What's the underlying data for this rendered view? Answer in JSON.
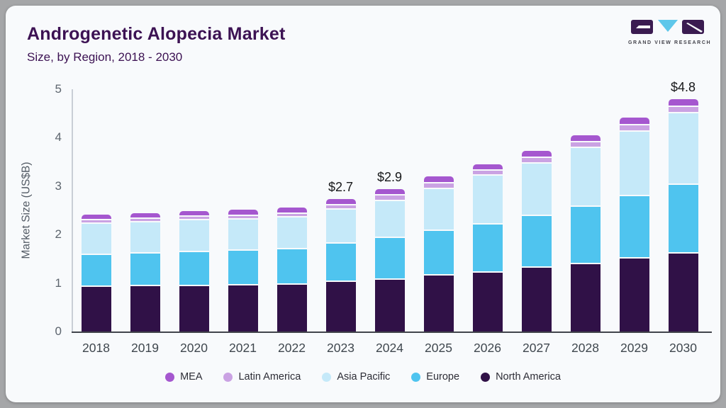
{
  "header": {
    "title": "Androgenetic Alopecia Market",
    "subtitle": "Size, by Region, 2018 - 2030"
  },
  "logo": {
    "name": "grand-view-research-logo",
    "text": "GRAND VIEW RESEARCH",
    "dark_color": "#3a1b50",
    "cyan_color": "#5ec7ea"
  },
  "colors": {
    "page_bg": "#a5a6a8",
    "card_bg": "#f8fafc",
    "title": "#3c1253",
    "x_axis_line": "#41444b",
    "y_axis_line": "#c9ced6"
  },
  "chart_data": {
    "type": "bar",
    "stacked": true,
    "title": "Androgenetic Alopecia Market",
    "subtitle": "Size, by Region, 2018 - 2030",
    "xlabel": "",
    "ylabel": "Market Size (US$B)",
    "ylim": [
      0,
      5
    ],
    "y_ticks": [
      0,
      1,
      2,
      3,
      4,
      5
    ],
    "grid": false,
    "legend_position": "bottom",
    "categories": [
      "2018",
      "2019",
      "2020",
      "2021",
      "2022",
      "2023",
      "2024",
      "2025",
      "2026",
      "2027",
      "2028",
      "2029",
      "2030"
    ],
    "series": [
      {
        "name": "North America",
        "color": "#301147",
        "values": [
          0.92,
          0.93,
          0.94,
          0.95,
          0.97,
          1.02,
          1.07,
          1.15,
          1.22,
          1.31,
          1.39,
          1.5,
          1.61
        ]
      },
      {
        "name": "Europe",
        "color": "#4fc4ef",
        "values": [
          0.66,
          0.68,
          0.7,
          0.71,
          0.72,
          0.79,
          0.86,
          0.92,
          0.99,
          1.07,
          1.18,
          1.29,
          1.41
        ]
      },
      {
        "name": "Asia Pacific",
        "color": "#c5e9f9",
        "values": [
          0.64,
          0.64,
          0.65,
          0.65,
          0.66,
          0.7,
          0.76,
          0.87,
          1.01,
          1.09,
          1.21,
          1.33,
          1.48
        ]
      },
      {
        "name": "Latin America",
        "color": "#caa2e3",
        "values": [
          0.08,
          0.08,
          0.08,
          0.08,
          0.08,
          0.09,
          0.11,
          0.11,
          0.1,
          0.11,
          0.12,
          0.13,
          0.13
        ]
      },
      {
        "name": "MEA",
        "color": "#a557cf",
        "values": [
          0.09,
          0.09,
          0.09,
          0.1,
          0.1,
          0.1,
          0.11,
          0.12,
          0.1,
          0.12,
          0.12,
          0.13,
          0.14
        ]
      }
    ],
    "totals": [
      2.39,
      2.41,
      2.44,
      2.48,
      2.52,
      2.7,
      2.91,
      3.17,
      3.42,
      3.7,
      4.02,
      4.38,
      4.77
    ],
    "annotations": [
      {
        "category": "2023",
        "label": "$2.7"
      },
      {
        "category": "2024",
        "label": "$2.9"
      },
      {
        "category": "2030",
        "label": "$4.8"
      }
    ],
    "legend_order": [
      "MEA",
      "Latin America",
      "Asia Pacific",
      "Europe",
      "North America"
    ]
  }
}
